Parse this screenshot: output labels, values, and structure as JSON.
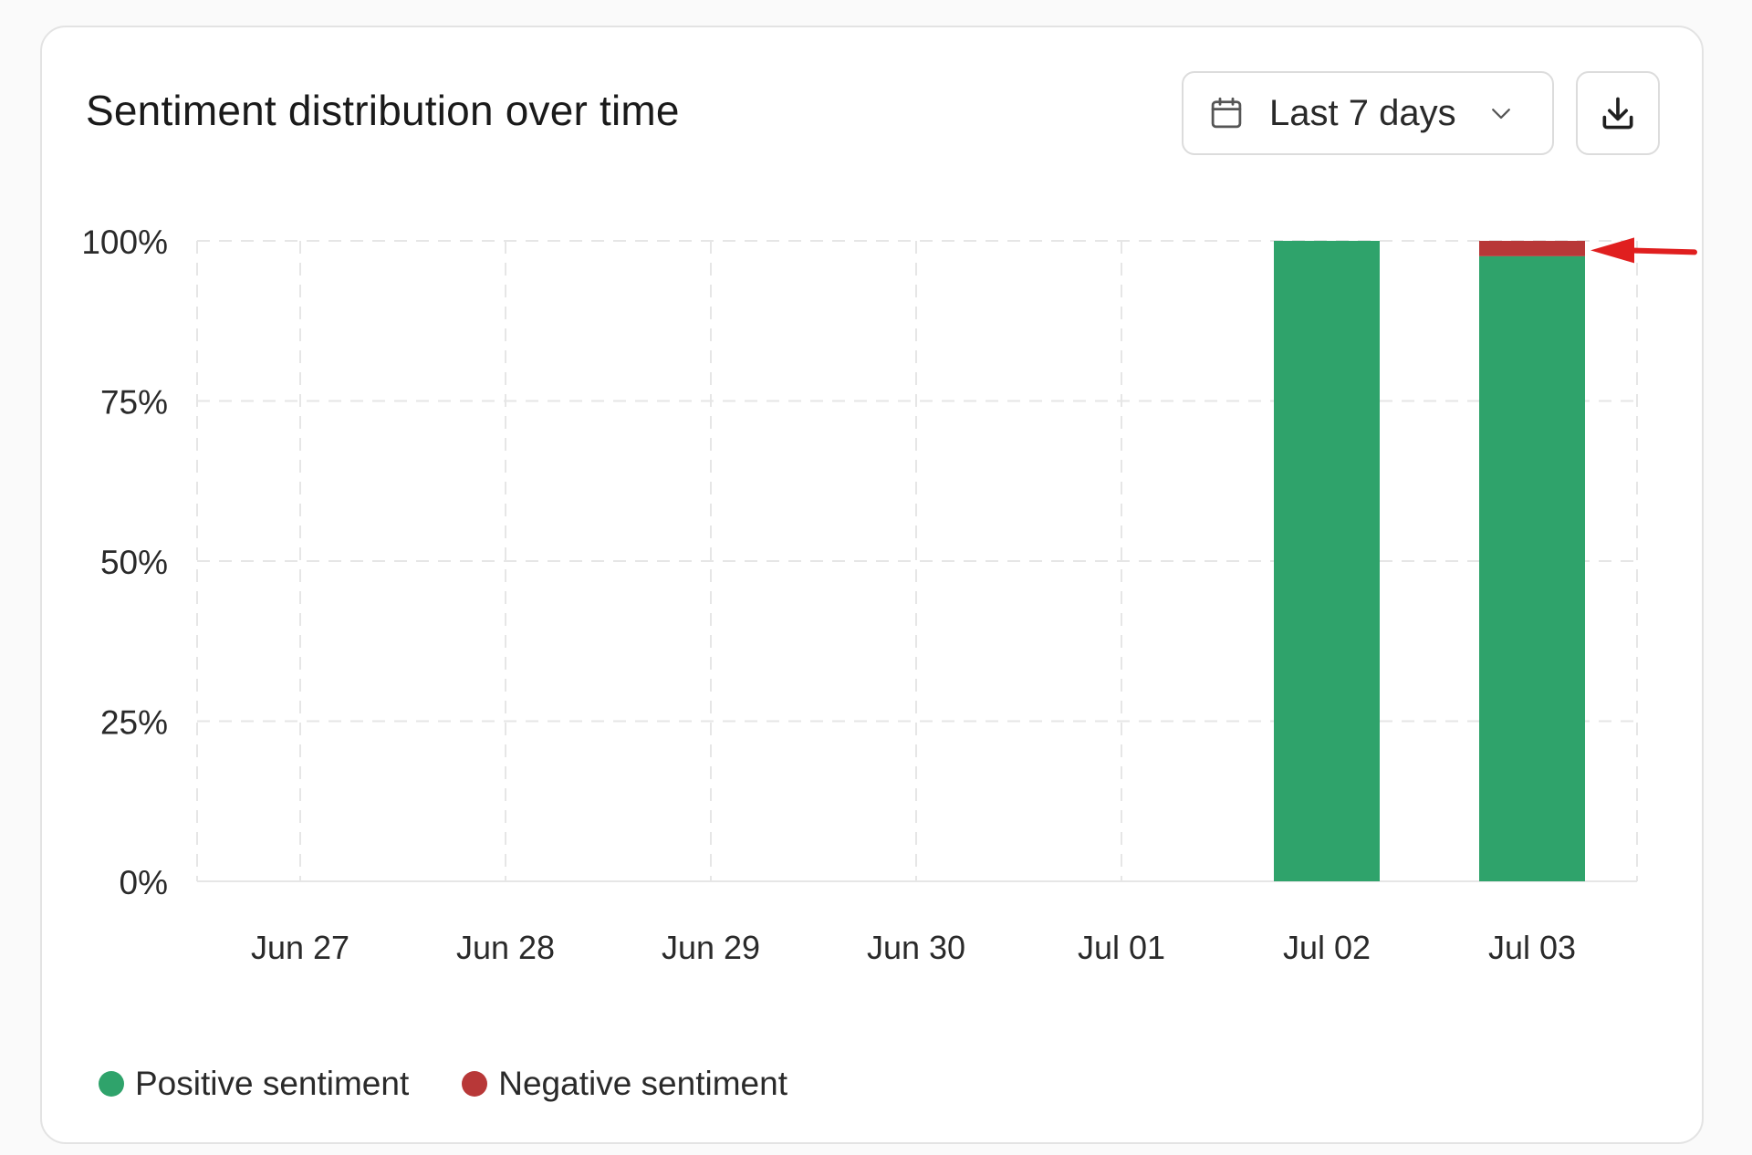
{
  "card": {
    "title": "Sentiment distribution over time"
  },
  "controls": {
    "date_range_label": "Last 7 days",
    "date_icon": "calendar-icon",
    "dropdown_icon": "chevron-down-icon",
    "download_icon": "download-icon"
  },
  "colors": {
    "positive": "#2fa36b",
    "negative": "#b83838",
    "annotation_arrow": "#e01f1f",
    "grid": "#e6e6e6"
  },
  "chart_data": {
    "type": "bar",
    "stacked": true,
    "categories": [
      "Jun 27",
      "Jun 28",
      "Jun 29",
      "Jun 30",
      "Jul 01",
      "Jul 02",
      "Jul 03"
    ],
    "series": [
      {
        "name": "Positive sentiment",
        "color": "#2fa36b",
        "values": [
          0,
          0,
          0,
          0,
          0,
          100,
          97.6
        ]
      },
      {
        "name": "Negative sentiment",
        "color": "#b83838",
        "values": [
          0,
          0,
          0,
          0,
          0,
          0,
          2.4
        ]
      }
    ],
    "yticks": [
      "0%",
      "25%",
      "50%",
      "75%",
      "100%"
    ],
    "ylim": [
      0,
      100
    ],
    "grid": true,
    "legend_position": "bottom-left",
    "annotation": {
      "type": "arrow",
      "category": "Jul 03",
      "series": "Negative sentiment"
    }
  }
}
